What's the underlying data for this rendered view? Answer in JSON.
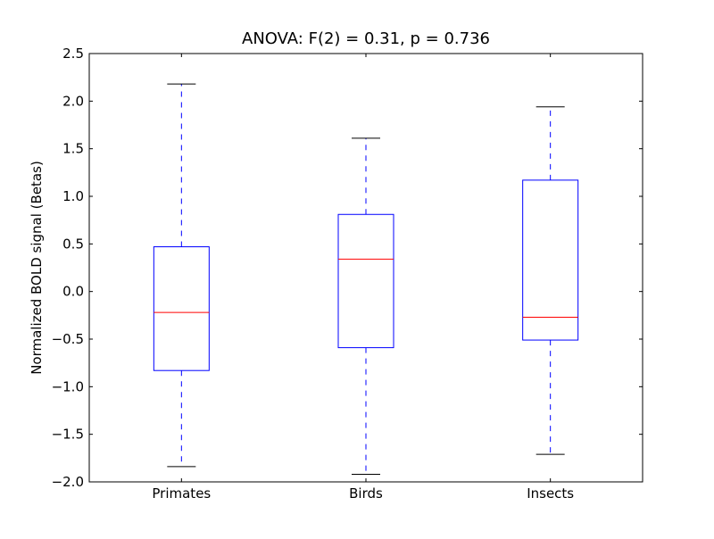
{
  "chart_data": {
    "type": "boxplot",
    "title": "ANOVA: F(2) = 0.31, p = 0.736",
    "xlabel": "",
    "ylabel": "Normalized BOLD signal (Betas)",
    "ylim": [
      -2.0,
      2.5
    ],
    "yticks": [
      "−2.0",
      "−1.5",
      "−1.0",
      "−0.5",
      "0.0",
      "0.5",
      "1.0",
      "1.5",
      "2.0",
      "2.5"
    ],
    "ytick_values": [
      -2.0,
      -1.5,
      -1.0,
      -0.5,
      0.0,
      0.5,
      1.0,
      1.5,
      2.0,
      2.5
    ],
    "categories": [
      "Primates",
      "Birds",
      "Insects"
    ],
    "boxes": [
      {
        "category": "Primates",
        "whisker_low": -1.84,
        "q1": -0.83,
        "median": -0.22,
        "q3": 0.47,
        "whisker_high": 2.18
      },
      {
        "category": "Birds",
        "whisker_low": -1.92,
        "q1": -0.59,
        "median": 0.34,
        "q3": 0.81,
        "whisker_high": 1.61
      },
      {
        "category": "Insects",
        "whisker_low": -1.71,
        "q1": -0.51,
        "median": -0.27,
        "q3": 1.17,
        "whisker_high": 1.94
      }
    ],
    "grid": false,
    "colors": {
      "box": "#0000ff",
      "median": "#ff0000",
      "cap": "#000000"
    }
  }
}
